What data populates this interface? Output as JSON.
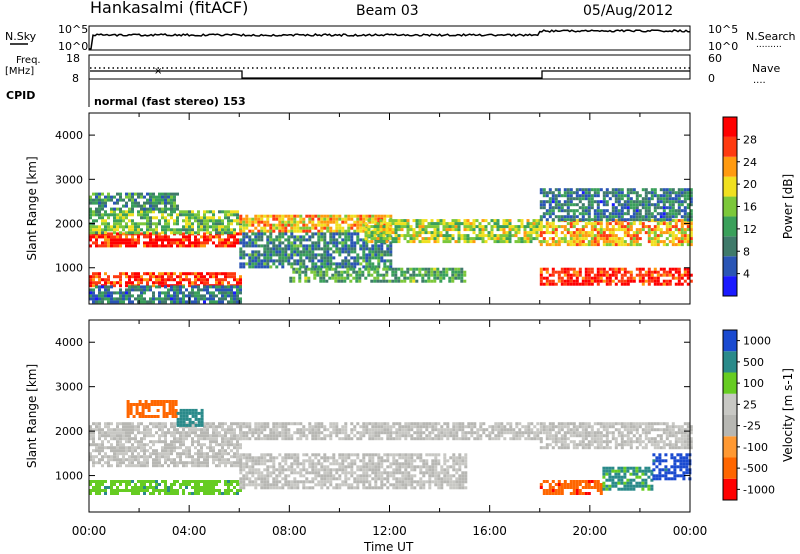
{
  "header": {
    "station": "Hankasalmi (fitACF)",
    "beam": "Beam 03",
    "date": "05/Aug/2012"
  },
  "top_panels": {
    "nsky_label": "N.Sky",
    "nsearch_label": "N.Search",
    "nsearch_line": ".........",
    "noise_tick_top": "10^5",
    "noise_tick_bottom": "10^0",
    "freq_label_1": "Freq.",
    "freq_label_2": "[MHz]",
    "freq_tick_top": "18",
    "freq_tick_bottom": "8",
    "nave_label": "Nave",
    "nave_line": "....",
    "nave_tick_top": "60",
    "nave_tick_bottom": "0",
    "cpid_label": "CPID",
    "cpid_text": "normal (fast stereo) 153"
  },
  "colors": {
    "power_scale": [
      "#1a1aff",
      "#2a55b5",
      "#3f7a6a",
      "#3aa05a",
      "#7cc83a",
      "#f0e020",
      "#ff9a10",
      "#ff3a10",
      "#ff0000"
    ],
    "velocity_scale": [
      "#ff0000",
      "#ff6600",
      "#ff9933",
      "#b7b7b3",
      "#c8c8c4",
      "#66cc22",
      "#2a8a8a",
      "#1a4ad0"
    ]
  },
  "chart_data": [
    {
      "type": "heatmap",
      "title": "Power",
      "ylabel": "Slant Range [km]",
      "xlabel": "Time UT",
      "ylim": [
        180,
        4500
      ],
      "x_tick_labels": [
        "00:00",
        "04:00",
        "08:00",
        "12:00",
        "16:00",
        "20:00",
        "00:00"
      ],
      "y_tick_labels": [
        "1000",
        "2000",
        "3000",
        "4000"
      ],
      "y_ticks": [
        1000,
        2000,
        3000,
        4000
      ],
      "colorbar_label": "Power [dB]",
      "colorbar_ticks": [
        "4",
        "8",
        "12",
        "16",
        "20",
        "24",
        "28"
      ],
      "colorbar_range": [
        0,
        30
      ],
      "bands": [
        {
          "t0": 0.0,
          "t1": 6.0,
          "r0": 1500,
          "r1": 1800,
          "value": 27
        },
        {
          "t0": 0.0,
          "t1": 6.0,
          "r0": 1800,
          "r1": 2300,
          "value": 14
        },
        {
          "t0": 0.0,
          "t1": 3.5,
          "r0": 2300,
          "r1": 2700,
          "value": 10
        },
        {
          "t0": 0.0,
          "t1": 6.0,
          "r0": 600,
          "r1": 900,
          "value": 26
        },
        {
          "t0": 0.0,
          "t1": 6.0,
          "r0": 200,
          "r1": 600,
          "value": 8
        },
        {
          "t0": 6.0,
          "t1": 12.0,
          "r0": 1800,
          "r1": 2200,
          "value": 20
        },
        {
          "t0": 6.0,
          "t1": 12.0,
          "r0": 1000,
          "r1": 1800,
          "value": 9
        },
        {
          "t0": 8.0,
          "t1": 15.0,
          "r0": 700,
          "r1": 1000,
          "value": 12
        },
        {
          "t0": 11.0,
          "t1": 18.0,
          "r0": 1600,
          "r1": 2100,
          "value": 16
        },
        {
          "t0": 18.0,
          "t1": 24.0,
          "r0": 1500,
          "r1": 2100,
          "value": 20
        },
        {
          "t0": 18.0,
          "t1": 24.0,
          "r0": 600,
          "r1": 1000,
          "value": 27
        },
        {
          "t0": 18.0,
          "t1": 24.0,
          "r0": 2100,
          "r1": 2800,
          "value": 8
        }
      ]
    },
    {
      "type": "heatmap",
      "title": "Velocity",
      "ylabel": "Slant Range [km]",
      "xlabel": "Time UT",
      "ylim": [
        180,
        4500
      ],
      "x_tick_labels": [
        "00:00",
        "04:00",
        "08:00",
        "12:00",
        "16:00",
        "20:00",
        "00:00"
      ],
      "y_tick_labels": [
        "1000",
        "2000",
        "3000",
        "4000"
      ],
      "y_ticks": [
        1000,
        2000,
        3000,
        4000
      ],
      "colorbar_label": "Velocity [m s-1]",
      "colorbar_ticks": [
        "-1000",
        "-500",
        "-100",
        "-25",
        "25",
        "100",
        "500",
        "1000"
      ],
      "bands": [
        {
          "t0": 0.0,
          "t1": 6.0,
          "r0": 1200,
          "r1": 2200,
          "value": 0
        },
        {
          "t0": 1.5,
          "t1": 3.5,
          "r0": 2300,
          "r1": 2700,
          "value": -300
        },
        {
          "t0": 3.5,
          "t1": 4.5,
          "r0": 2100,
          "r1": 2500,
          "value": 150
        },
        {
          "t0": 0.0,
          "t1": 6.0,
          "r0": 600,
          "r1": 900,
          "value": 80
        },
        {
          "t0": 6.0,
          "t1": 18.0,
          "r0": 1800,
          "r1": 2200,
          "value": 0
        },
        {
          "t0": 6.0,
          "t1": 15.0,
          "r0": 700,
          "r1": 1500,
          "value": 0
        },
        {
          "t0": 18.0,
          "t1": 24.0,
          "r0": 1600,
          "r1": 2200,
          "value": 0
        },
        {
          "t0": 18.0,
          "t1": 20.5,
          "r0": 600,
          "r1": 900,
          "value": -400
        },
        {
          "t0": 20.5,
          "t1": 22.5,
          "r0": 700,
          "r1": 1200,
          "value": 120
        },
        {
          "t0": 22.5,
          "t1": 24.0,
          "r0": 900,
          "r1": 1500,
          "value": 700
        }
      ]
    }
  ]
}
